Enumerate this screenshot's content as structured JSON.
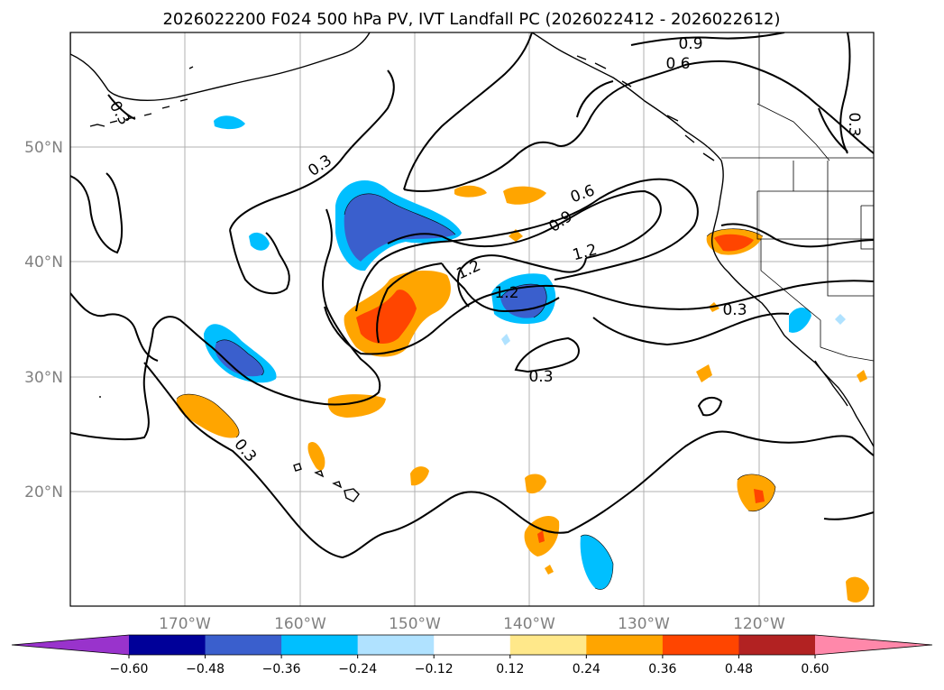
{
  "title": "2026022200 F024 500 hPa PV, IVT Landfall PC (2026022412 - 2026022612)",
  "map": {
    "lon_ticks": [
      "170°W",
      "160°W",
      "150°W",
      "140°W",
      "130°W",
      "120°W"
    ],
    "lat_ticks": [
      "50°N",
      "40°N",
      "30°N",
      "20°N"
    ],
    "gridlines": true
  },
  "contour_labels": [
    "0.9",
    "0.6",
    "0.3",
    "0.3",
    "0.6",
    "0.9",
    "1.2",
    "1.2",
    "1.2",
    "0.3",
    "0.3",
    "0.3"
  ],
  "colorbar": {
    "orientation": "horizontal",
    "extend": "both",
    "ticks": [
      "−0.60",
      "−0.48",
      "−0.36",
      "−0.24",
      "−0.12",
      "0.12",
      "0.24",
      "0.36",
      "0.48",
      "0.60"
    ],
    "colors": [
      "#9933cc",
      "#000099",
      "#3a5fcd",
      "#00bfff",
      "#b0e2ff",
      "#ffffff",
      "#ffe88a",
      "#ffa500",
      "#ff4500",
      "#b22222",
      "#ff88aa"
    ]
  },
  "colors": {
    "neg_strong": "#3a5fcd",
    "neg_mid": "#00bfff",
    "neg_weak": "#b0e2ff",
    "pos_weak": "#ffe88a",
    "pos_mid": "#ffa500",
    "pos_strong": "#ff4500"
  }
}
